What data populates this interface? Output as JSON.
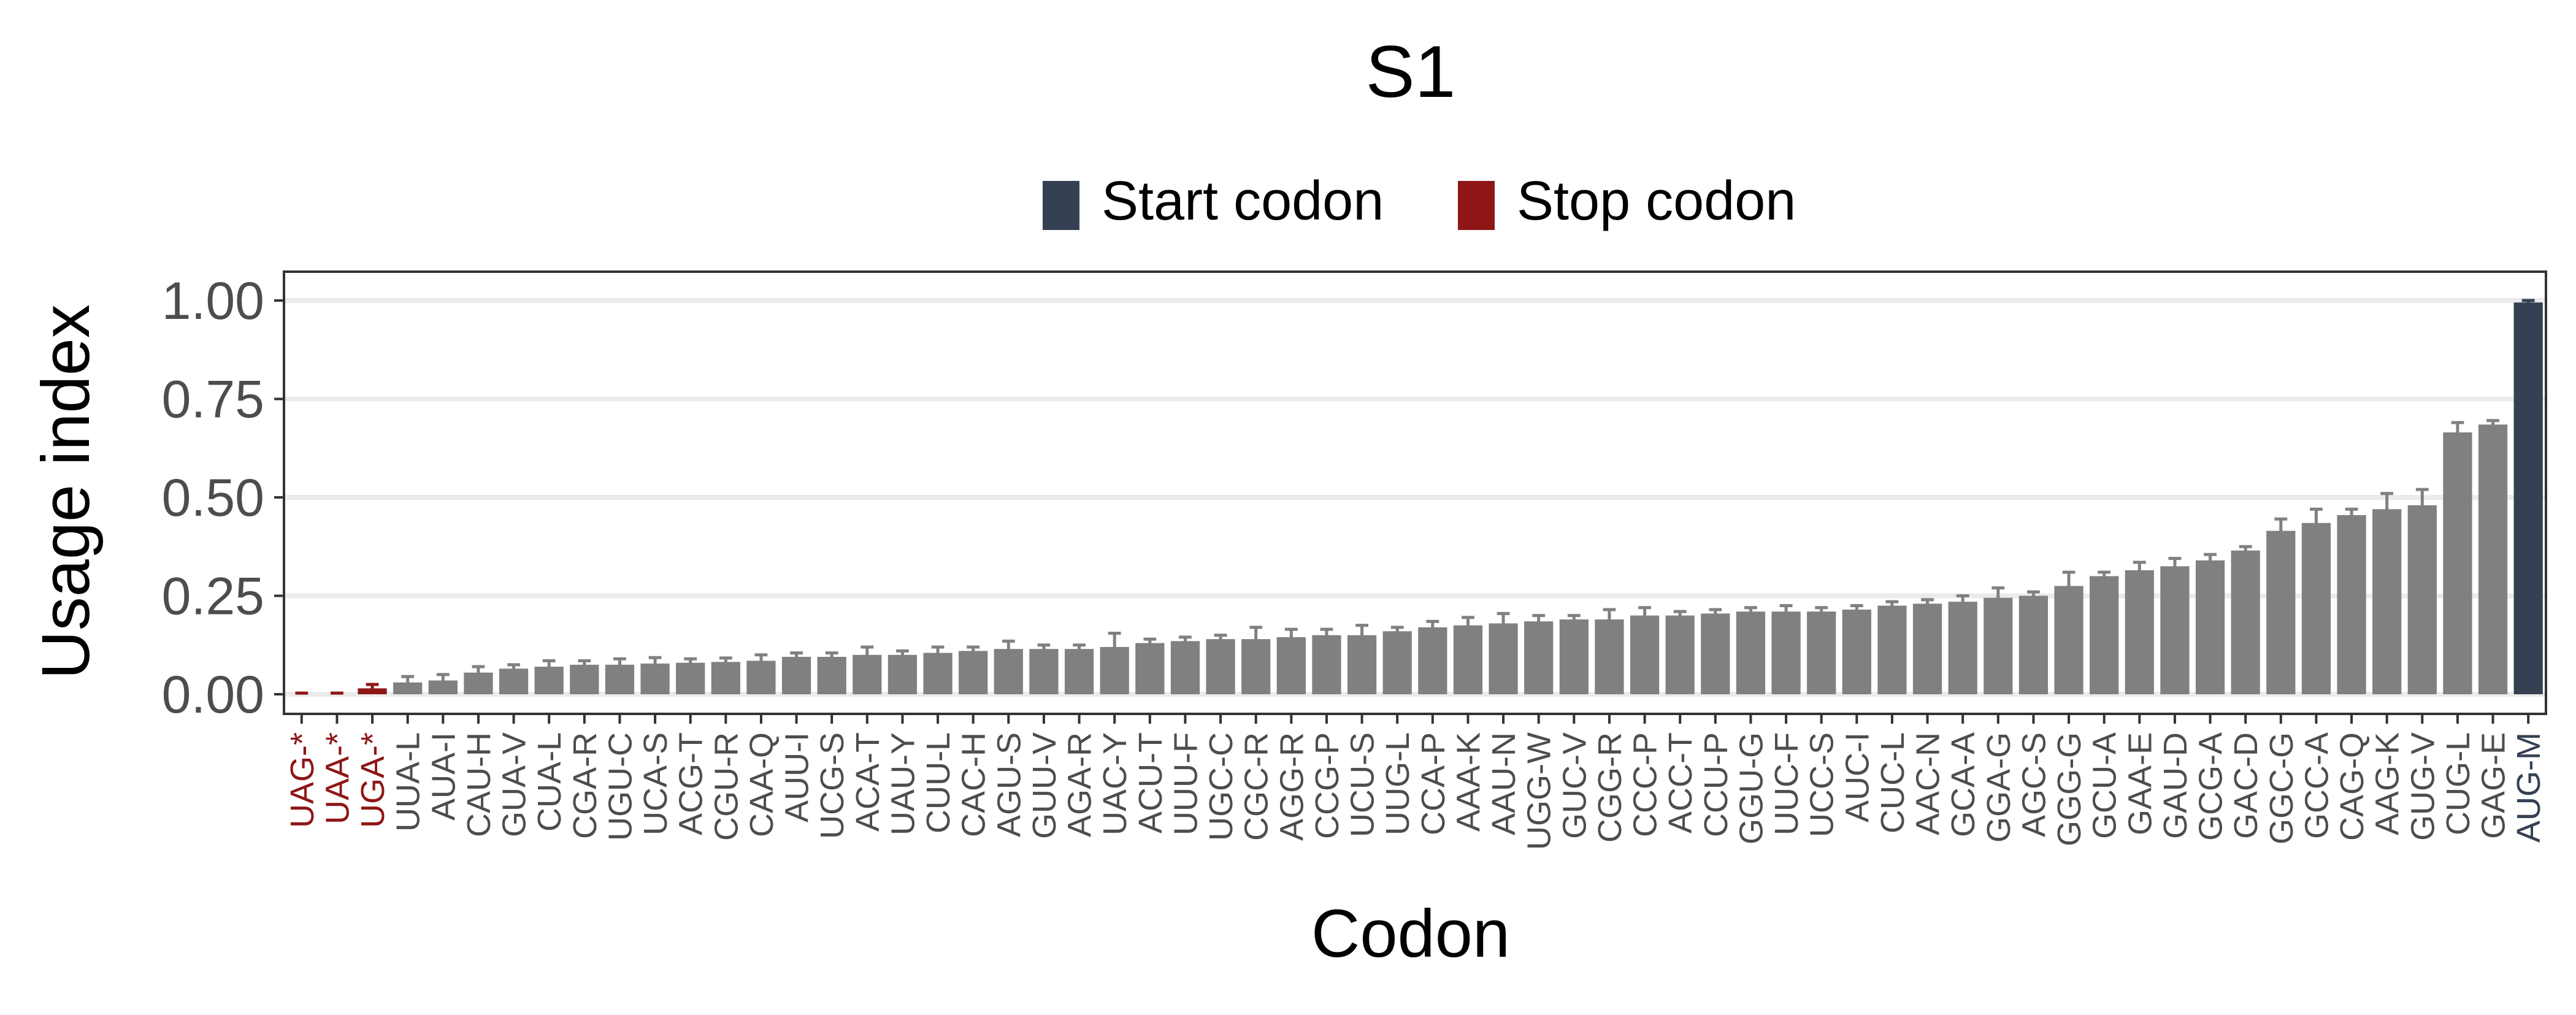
{
  "chart_data": {
    "type": "bar",
    "title": "S1",
    "xlabel": "Codon",
    "ylabel": "Usage index",
    "ylim": [
      0,
      1.05
    ],
    "yticks": [
      "0.00",
      "0.25",
      "0.50",
      "0.75",
      "1.00"
    ],
    "grid": "horizontal",
    "legend_position": "top",
    "legend": [
      {
        "label": "Start codon",
        "color": "#354152"
      },
      {
        "label": "Stop codon",
        "color": "#8E1616"
      }
    ],
    "colors": {
      "default": "#808080",
      "start": "#354152",
      "stop": "#8E1616"
    },
    "categories": [
      "UAG-*",
      "UAA-*",
      "UGA-*",
      "UUA-L",
      "AUA-I",
      "CAU-H",
      "GUA-V",
      "CUA-L",
      "CGA-R",
      "UGU-C",
      "UCA-S",
      "ACG-T",
      "CGU-R",
      "CAA-Q",
      "AUU-I",
      "UCG-S",
      "ACA-T",
      "UAU-Y",
      "CUU-L",
      "CAC-H",
      "AGU-S",
      "GUU-V",
      "AGA-R",
      "UAC-Y",
      "ACU-T",
      "UUU-F",
      "UGC-C",
      "CGC-R",
      "AGG-R",
      "CCG-P",
      "UCU-S",
      "UUG-L",
      "CCA-P",
      "AAA-K",
      "AAU-N",
      "UGG-W",
      "GUC-V",
      "CGG-R",
      "CCC-P",
      "ACC-T",
      "CCU-P",
      "GGU-G",
      "UUC-F",
      "UCC-S",
      "AUC-I",
      "CUC-L",
      "AAC-N",
      "GCA-A",
      "GGA-G",
      "AGC-S",
      "GGG-G",
      "GCU-A",
      "GAA-E",
      "GAU-D",
      "GCG-A",
      "GAC-D",
      "GGC-G",
      "GCC-A",
      "CAG-Q",
      "AAG-K",
      "GUG-V",
      "CUG-L",
      "GAG-E",
      "AUG-M"
    ],
    "values": [
      0.0,
      0.0,
      0.015,
      0.03,
      0.035,
      0.055,
      0.065,
      0.07,
      0.075,
      0.075,
      0.078,
      0.08,
      0.082,
      0.085,
      0.095,
      0.095,
      0.1,
      0.1,
      0.105,
      0.11,
      0.115,
      0.115,
      0.115,
      0.12,
      0.13,
      0.135,
      0.14,
      0.14,
      0.145,
      0.15,
      0.15,
      0.16,
      0.17,
      0.175,
      0.18,
      0.185,
      0.19,
      0.19,
      0.2,
      0.2,
      0.205,
      0.21,
      0.21,
      0.21,
      0.215,
      0.225,
      0.23,
      0.235,
      0.245,
      0.25,
      0.275,
      0.3,
      0.315,
      0.325,
      0.34,
      0.365,
      0.415,
      0.435,
      0.455,
      0.47,
      0.48,
      0.665,
      0.685,
      0.995
    ],
    "errors": [
      0.003,
      0.003,
      0.01,
      0.015,
      0.015,
      0.015,
      0.01,
      0.015,
      0.01,
      0.015,
      0.015,
      0.01,
      0.01,
      0.015,
      0.01,
      0.01,
      0.02,
      0.01,
      0.015,
      0.01,
      0.02,
      0.01,
      0.01,
      0.035,
      0.01,
      0.01,
      0.01,
      0.03,
      0.02,
      0.015,
      0.025,
      0.01,
      0.015,
      0.02,
      0.025,
      0.015,
      0.01,
      0.025,
      0.02,
      0.01,
      0.01,
      0.01,
      0.015,
      0.01,
      0.01,
      0.01,
      0.01,
      0.015,
      0.025,
      0.01,
      0.035,
      0.01,
      0.02,
      0.02,
      0.015,
      0.01,
      0.03,
      0.035,
      0.015,
      0.04,
      0.04,
      0.025,
      0.01,
      0.005
    ],
    "categories_type": {
      "UAG-*": "stop",
      "UAA-*": "stop",
      "UGA-*": "stop",
      "AUG-M": "start"
    }
  }
}
